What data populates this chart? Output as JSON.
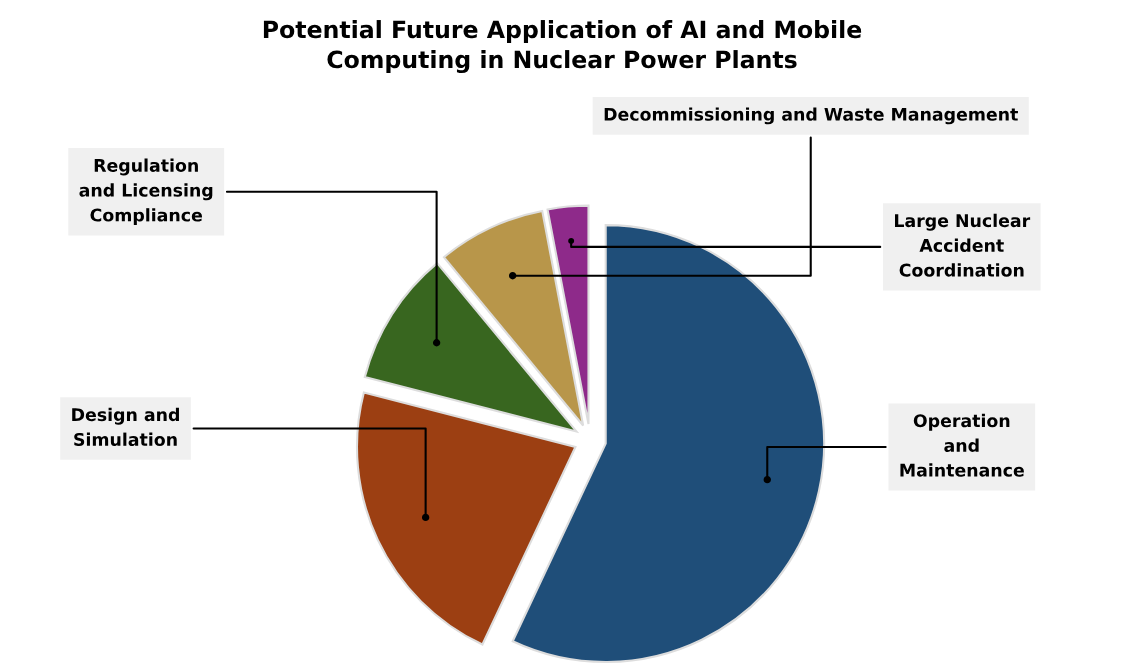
{
  "chart_data": {
    "type": "pie",
    "title": "Potential Future Application of AI and Mobile\nComputing in Nuclear Power Plants",
    "categories": [
      "Operation\nand\nMaintenance",
      "Design and\nSimulation",
      "Regulation\nand Licensing\nCompliance",
      "Decommissioning and Waste Management",
      "Large Nuclear\nAccident\nCoordination"
    ],
    "values": [
      57,
      22,
      10,
      8,
      3
    ],
    "colors": [
      "#1f4e79",
      "#9c3f12",
      "#38661f",
      "#b8964a",
      "#8e2a8a"
    ],
    "legend": false
  }
}
